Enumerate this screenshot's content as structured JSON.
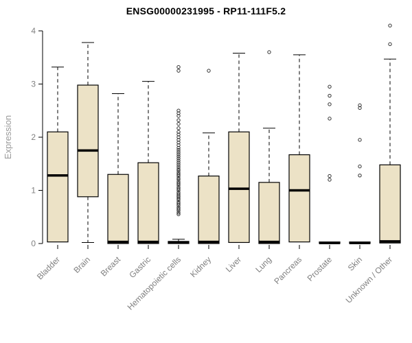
{
  "chart_data": {
    "type": "boxplot",
    "title": "ENSG00000231995 - RP11-111F5.2",
    "ylabel": "Expression",
    "ylim": [
      0,
      4.15
    ],
    "yticks": [
      0,
      1,
      2,
      3,
      4
    ],
    "grid": false,
    "legend": "none",
    "box_fill": "#ece2c6",
    "box_stroke": "#000000",
    "whisker_style": "dashed",
    "outlier_marker": "open-circle",
    "categories": [
      "Bladder",
      "Brain",
      "Breast",
      "Gastric",
      "Hematopoietic cells",
      "Kidney",
      "Liver",
      "Lung",
      "Pancreas",
      "Prostate",
      "Skin",
      "Unknown / Other"
    ],
    "series": [
      {
        "name": "Bladder",
        "whisker_low": 0.03,
        "q1": 0.03,
        "median": 1.28,
        "q3": 2.1,
        "whisker_high": 3.32,
        "outliers": []
      },
      {
        "name": "Brain",
        "whisker_low": 0.02,
        "q1": 0.88,
        "median": 1.75,
        "q3": 2.98,
        "whisker_high": 3.78,
        "outliers": []
      },
      {
        "name": "Breast",
        "whisker_low": 0.0,
        "q1": 0.0,
        "median": 0.03,
        "q3": 1.3,
        "whisker_high": 2.82,
        "outliers": []
      },
      {
        "name": "Gastric",
        "whisker_low": 0.0,
        "q1": 0.0,
        "median": 0.03,
        "q3": 1.52,
        "whisker_high": 3.05,
        "outliers": []
      },
      {
        "name": "Hematopoietic cells",
        "whisker_low": 0.0,
        "q1": 0.0,
        "median": 0.02,
        "q3": 0.04,
        "whisker_high": 0.08,
        "outliers": [
          0.55,
          0.58,
          0.62,
          0.65,
          0.68,
          0.72,
          0.75,
          0.78,
          0.82,
          0.85,
          0.88,
          0.9,
          0.93,
          0.96,
          1.0,
          1.03,
          1.06,
          1.1,
          1.13,
          1.16,
          1.2,
          1.23,
          1.27,
          1.3,
          1.33,
          1.37,
          1.4,
          1.44,
          1.48,
          1.52,
          1.56,
          1.6,
          1.64,
          1.68,
          1.72,
          1.76,
          1.8,
          1.85,
          1.9,
          1.95,
          2.0,
          2.05,
          2.1,
          2.17,
          2.25,
          2.32,
          2.4,
          2.45,
          2.5,
          3.25,
          3.32
        ]
      },
      {
        "name": "Kidney",
        "whisker_low": 0.0,
        "q1": 0.0,
        "median": 0.03,
        "q3": 1.27,
        "whisker_high": 2.08,
        "outliers": [
          3.25
        ]
      },
      {
        "name": "Liver",
        "whisker_low": 0.02,
        "q1": 0.02,
        "median": 1.03,
        "q3": 2.1,
        "whisker_high": 3.58,
        "outliers": []
      },
      {
        "name": "Lung",
        "whisker_low": 0.0,
        "q1": 0.0,
        "median": 0.03,
        "q3": 1.15,
        "whisker_high": 2.17,
        "outliers": [
          3.6
        ]
      },
      {
        "name": "Pancreas",
        "whisker_low": 0.03,
        "q1": 0.03,
        "median": 1.0,
        "q3": 1.67,
        "whisker_high": 3.55,
        "outliers": []
      },
      {
        "name": "Prostate",
        "whisker_low": 0.0,
        "q1": 0.0,
        "median": 0.01,
        "q3": 0.03,
        "whisker_high": 0.03,
        "outliers": [
          1.2,
          1.27,
          2.35,
          2.62,
          2.78,
          2.95
        ]
      },
      {
        "name": "Skin",
        "whisker_low": 0.0,
        "q1": 0.0,
        "median": 0.01,
        "q3": 0.03,
        "whisker_high": 0.03,
        "outliers": [
          1.28,
          1.45,
          1.95,
          2.55,
          2.6
        ]
      },
      {
        "name": "Unknown / Other",
        "whisker_low": 0.01,
        "q1": 0.01,
        "median": 0.04,
        "q3": 1.48,
        "whisker_high": 3.47,
        "outliers": [
          3.75,
          4.1
        ]
      }
    ]
  }
}
